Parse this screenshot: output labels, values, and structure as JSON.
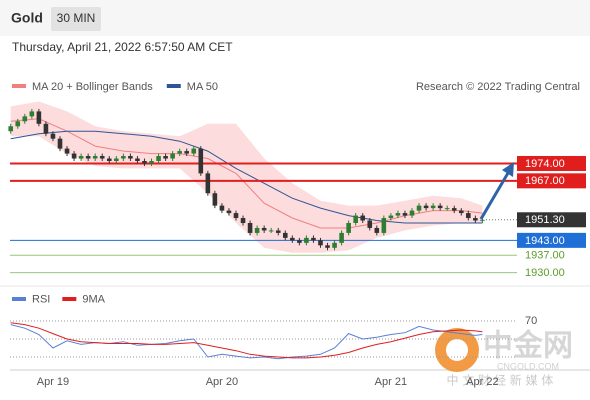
{
  "header": {
    "symbol": "Gold",
    "timeframe": "30 MIN"
  },
  "timestamp": "Thursday, April 21, 2022 6:57:50 AM CET",
  "watermark": {
    "brand": "中金网",
    "site": "CNGOLD.COM",
    "tagline": "中 文 财 经 新 媒 体"
  },
  "chart_data": [
    {
      "type": "candlestick",
      "credit": "Research © 2022 Trading Central",
      "ylim": [
        1925,
        2000
      ],
      "categories": [
        null,
        null,
        null,
        null,
        null,
        null,
        "Apr 19",
        null,
        null,
        null,
        null,
        null,
        null,
        null,
        null,
        null,
        null,
        null,
        null,
        null,
        null,
        null,
        null,
        null,
        null,
        null,
        null,
        null,
        null,
        null,
        "Apr 20",
        null,
        null,
        null,
        null,
        null,
        null,
        null,
        null,
        null,
        null,
        null,
        null,
        null,
        null,
        null,
        null,
        null,
        null,
        null,
        null,
        null,
        null,
        null,
        "Apr 21",
        null,
        null,
        null,
        null,
        null,
        null,
        null,
        null,
        null,
        null,
        null,
        null,
        "Apr 22"
      ],
      "up_color": "#2e7d32",
      "down_color": "#333333",
      "open": [
        1987,
        1989,
        1991,
        1993,
        1995,
        1990,
        1986,
        1984,
        1980,
        1978,
        1976,
        1977,
        1976,
        1977,
        1976,
        1975,
        1976,
        1977,
        1976,
        1975,
        1974,
        1975,
        1977,
        1976,
        1978,
        1979,
        1978,
        1980,
        1970,
        1962,
        1957,
        1955,
        1954,
        1952,
        1950,
        1946,
        1948,
        1947,
        1947,
        1946,
        1944,
        1943,
        1942,
        1944,
        1943,
        1941,
        1940,
        1942,
        1946,
        1950,
        1953,
        1951,
        1948,
        1946,
        1952,
        1953,
        1954,
        1953,
        1955,
        1957,
        1956,
        1957,
        1956,
        1956,
        1955,
        1954,
        1952,
        1951
      ],
      "high": [
        1990,
        1992,
        1994,
        1996,
        1996,
        1991,
        1987,
        1985,
        1981,
        1979,
        1978,
        1978,
        1978,
        1978,
        1977,
        1977,
        1978,
        1978,
        1977,
        1976,
        1976,
        1978,
        1978,
        1979,
        1980,
        1980,
        1981,
        1981,
        1971,
        1963,
        1958,
        1956,
        1955,
        1953,
        1951,
        1949,
        1949,
        1948,
        1948,
        1947,
        1945,
        1944,
        1945,
        1945,
        1944,
        1942,
        1943,
        1947,
        1951,
        1954,
        1954,
        1952,
        1949,
        1953,
        1954,
        1955,
        1955,
        1956,
        1958,
        1958,
        1958,
        1958,
        1957,
        1957,
        1956,
        1955,
        1953,
        1952
      ],
      "low": [
        1986,
        1988,
        1990,
        1992,
        1989,
        1985,
        1983,
        1979,
        1977,
        1975,
        1975,
        1975,
        1975,
        1975,
        1974,
        1974,
        1975,
        1975,
        1974,
        1973,
        1973,
        1974,
        1975,
        1975,
        1977,
        1977,
        1977,
        1969,
        1961,
        1956,
        1954,
        1953,
        1951,
        1949,
        1945,
        1945,
        1946,
        1946,
        1945,
        1943,
        1942,
        1941,
        1941,
        1942,
        1940,
        1939,
        1939,
        1941,
        1945,
        1949,
        1950,
        1947,
        1945,
        1945,
        1951,
        1952,
        1952,
        1952,
        1954,
        1955,
        1955,
        1955,
        1955,
        1954,
        1953,
        1951,
        1950,
        1950
      ],
      "close": [
        1989,
        1991,
        1993,
        1995,
        1990,
        1986,
        1984,
        1980,
        1978,
        1976,
        1977,
        1976,
        1977,
        1976,
        1975,
        1976,
        1977,
        1976,
        1975,
        1974,
        1975,
        1977,
        1976,
        1978,
        1979,
        1978,
        1980,
        1970,
        1962,
        1957,
        1955,
        1954,
        1952,
        1950,
        1946,
        1948,
        1947,
        1947,
        1946,
        1944,
        1943,
        1942,
        1944,
        1943,
        1941,
        1940,
        1942,
        1946,
        1950,
        1953,
        1951,
        1948,
        1946,
        1952,
        1953,
        1954,
        1953,
        1955,
        1957,
        1956,
        1957,
        1956,
        1956,
        1955,
        1954,
        1952,
        1951,
        1951.3
      ],
      "series": [
        {
          "name": "MA 20 + Bollinger Bands",
          "color": "#f08080",
          "fill": "#fbd3d3",
          "x": [
            0,
            4,
            8,
            12,
            16,
            20,
            24,
            28,
            32,
            36,
            40,
            44,
            48,
            52,
            56,
            60,
            64,
            67
          ],
          "upper": [
            1997,
            1999,
            1995,
            1989,
            1987,
            1986,
            1985,
            1990,
            1990,
            1976,
            1966,
            1959,
            1957,
            1957,
            1959,
            1961,
            1960,
            1957
          ],
          "middle": [
            1991,
            1992,
            1987,
            1981,
            1979,
            1978,
            1978,
            1976,
            1970,
            1958,
            1952,
            1948,
            1948,
            1950,
            1953,
            1955,
            1955,
            1954
          ],
          "lower": [
            1985,
            1985,
            1978,
            1973,
            1972,
            1972,
            1972,
            1962,
            1950,
            1940,
            1938,
            1938,
            1939,
            1944,
            1947,
            1949,
            1950,
            1950
          ]
        },
        {
          "name": "MA 50",
          "color": "#2f5597",
          "x": [
            0,
            4,
            8,
            12,
            16,
            20,
            24,
            28,
            32,
            36,
            40,
            44,
            48,
            52,
            56,
            60,
            64,
            67
          ],
          "values": [
            1984,
            1986,
            1987,
            1987,
            1986,
            1985,
            1983,
            1979,
            1972,
            1966,
            1960,
            1956,
            1953,
            1951,
            1950,
            1950,
            1950,
            1950
          ]
        }
      ],
      "levels": [
        {
          "value": 1974,
          "label": "1974.00",
          "color": "#e01e1e",
          "badge": true
        },
        {
          "value": 1967,
          "label": "1967.00",
          "color": "#e01e1e",
          "badge": true
        },
        {
          "value": 1951.3,
          "label": "1951.30",
          "color": "#333333",
          "badge": true,
          "dotted": true
        },
        {
          "value": 1943,
          "label": "1943.00",
          "color": "#1f6fd6",
          "badge": true
        },
        {
          "value": 1937,
          "label": "1937.00",
          "color": "#5a9e2a",
          "badge": false
        },
        {
          "value": 1930,
          "label": "1930.00",
          "color": "#5a9e2a",
          "badge": false
        }
      ]
    },
    {
      "type": "line",
      "ylim": [
        15,
        88
      ],
      "yticks": [
        70
      ],
      "guides": [
        70,
        50,
        30
      ],
      "series": [
        {
          "name": "RSI",
          "color": "#5b7fd6",
          "x": [
            0,
            2,
            4,
            6,
            8,
            10,
            12,
            14,
            16,
            18,
            20,
            22,
            24,
            26,
            28,
            30,
            32,
            34,
            36,
            38,
            40,
            42,
            44,
            46,
            48,
            50,
            52,
            54,
            56,
            58,
            60,
            62,
            64,
            66,
            67
          ],
          "values": [
            66,
            62,
            55,
            40,
            48,
            44,
            46,
            45,
            47,
            43,
            44,
            45,
            48,
            50,
            30,
            33,
            31,
            29,
            30,
            28,
            30,
            31,
            33,
            40,
            56,
            50,
            52,
            55,
            57,
            64,
            60,
            58,
            56,
            54,
            55
          ]
        },
        {
          "name": "9MA",
          "color": "#e01e1e",
          "x": [
            0,
            2,
            4,
            6,
            8,
            10,
            12,
            14,
            16,
            18,
            20,
            22,
            24,
            26,
            28,
            30,
            32,
            34,
            36,
            38,
            40,
            42,
            44,
            46,
            48,
            50,
            52,
            54,
            56,
            58,
            60,
            62,
            64,
            66,
            67
          ],
          "values": [
            68,
            66,
            62,
            56,
            50,
            47,
            46,
            45,
            45,
            45,
            44,
            44,
            45,
            46,
            43,
            40,
            37,
            33,
            31,
            30,
            29,
            29,
            30,
            32,
            35,
            40,
            44,
            47,
            51,
            55,
            58,
            59,
            60,
            59,
            58
          ]
        }
      ]
    }
  ]
}
